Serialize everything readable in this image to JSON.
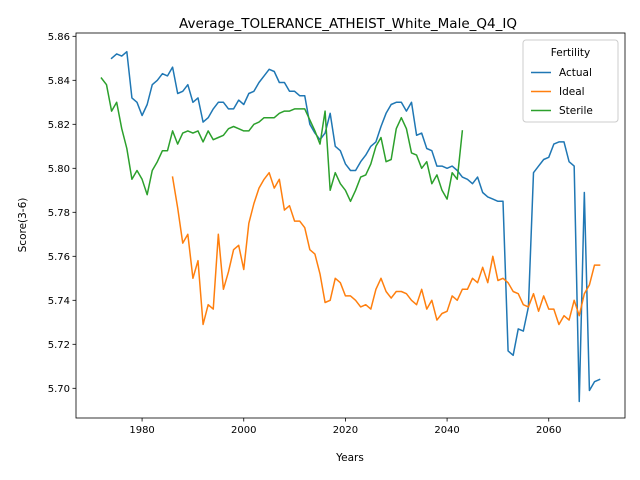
{
  "chart_data": {
    "type": "line",
    "title": "Average_TOLERANCE_ATHEIST_White_Male_Q4_IQ",
    "xlabel": "Years",
    "ylabel": "Score(3-6)",
    "xlim": [
      1967,
      2075
    ],
    "ylim": [
      5.6865,
      5.8615
    ],
    "xticks": [
      1980,
      2000,
      2020,
      2040,
      2060
    ],
    "yticks": [
      5.7,
      5.72,
      5.74,
      5.76,
      5.78,
      5.8,
      5.82,
      5.84,
      5.86
    ],
    "grid": false,
    "legend": {
      "title": "Fertility",
      "placement": "top-right"
    },
    "series": [
      {
        "name": "Actual",
        "color": "#1f77b4",
        "x": [
          1974,
          1975,
          1976,
          1977,
          1978,
          1979,
          1980,
          1981,
          1982,
          1983,
          1984,
          1985,
          1986,
          1987,
          1988,
          1989,
          1990,
          1991,
          1992,
          1993,
          1994,
          1995,
          1996,
          1997,
          1998,
          1999,
          2000,
          2001,
          2002,
          2003,
          2004,
          2005,
          2006,
          2007,
          2008,
          2009,
          2010,
          2011,
          2012,
          2013,
          2014,
          2015,
          2016,
          2017,
          2018,
          2019,
          2020,
          2021,
          2022,
          2023,
          2024,
          2025,
          2026,
          2027,
          2028,
          2029,
          2030,
          2031,
          2032,
          2033,
          2034,
          2035,
          2036,
          2037,
          2038,
          2039,
          2040,
          2041,
          2042,
          2043,
          2044,
          2045,
          2046,
          2047,
          2048,
          2049,
          2050,
          2051,
          2052,
          2053,
          2054,
          2055,
          2056,
          2057,
          2058,
          2059,
          2060,
          2061,
          2062,
          2063,
          2064,
          2065,
          2066,
          2067,
          2068,
          2069,
          2070
        ],
        "values": [
          5.85,
          5.852,
          5.851,
          5.853,
          5.832,
          5.83,
          5.824,
          5.829,
          5.838,
          5.84,
          5.843,
          5.842,
          5.846,
          5.834,
          5.835,
          5.838,
          5.83,
          5.832,
          5.821,
          5.823,
          5.827,
          5.83,
          5.83,
          5.827,
          5.827,
          5.831,
          5.829,
          5.834,
          5.835,
          5.839,
          5.842,
          5.845,
          5.844,
          5.839,
          5.839,
          5.835,
          5.835,
          5.833,
          5.833,
          5.82,
          5.816,
          5.813,
          5.816,
          5.825,
          5.81,
          5.808,
          5.802,
          5.799,
          5.799,
          5.803,
          5.806,
          5.81,
          5.812,
          5.819,
          5.825,
          5.829,
          5.83,
          5.83,
          5.826,
          5.83,
          5.815,
          5.816,
          5.809,
          5.808,
          5.801,
          5.801,
          5.8,
          5.801,
          5.799,
          5.796,
          5.795,
          5.793,
          5.796,
          5.789,
          5.787,
          5.786,
          5.785,
          5.785,
          5.717,
          5.715,
          5.727,
          5.726,
          5.737,
          5.798,
          5.801,
          5.804,
          5.805,
          5.811,
          5.812,
          5.812,
          5.803,
          5.801,
          5.694,
          5.789,
          5.699,
          5.703,
          5.704
        ]
      },
      {
        "name": "Ideal",
        "color": "#ff7f0e",
        "x": [
          1986,
          1987,
          1988,
          1989,
          1990,
          1991,
          1992,
          1993,
          1994,
          1995,
          1996,
          1997,
          1998,
          1999,
          2000,
          2001,
          2002,
          2003,
          2004,
          2005,
          2006,
          2007,
          2008,
          2009,
          2010,
          2011,
          2012,
          2013,
          2014,
          2015,
          2016,
          2017,
          2018,
          2019,
          2020,
          2021,
          2022,
          2023,
          2024,
          2025,
          2026,
          2027,
          2028,
          2029,
          2030,
          2031,
          2032,
          2033,
          2034,
          2035,
          2036,
          2037,
          2038,
          2039,
          2040,
          2041,
          2042,
          2043,
          2044,
          2045,
          2046,
          2047,
          2048,
          2049,
          2050,
          2051,
          2052,
          2053,
          2054,
          2055,
          2056,
          2057,
          2058,
          2059,
          2060,
          2061,
          2062,
          2063,
          2064,
          2065,
          2066,
          2067,
          2068,
          2069,
          2070
        ],
        "values": [
          5.796,
          5.782,
          5.766,
          5.77,
          5.75,
          5.758,
          5.729,
          5.738,
          5.736,
          5.77,
          5.745,
          5.753,
          5.763,
          5.765,
          5.754,
          5.775,
          5.784,
          5.791,
          5.795,
          5.798,
          5.791,
          5.795,
          5.781,
          5.783,
          5.776,
          5.776,
          5.773,
          5.763,
          5.761,
          5.752,
          5.739,
          5.74,
          5.75,
          5.748,
          5.742,
          5.742,
          5.74,
          5.737,
          5.738,
          5.736,
          5.745,
          5.75,
          5.744,
          5.741,
          5.744,
          5.744,
          5.743,
          5.74,
          5.738,
          5.745,
          5.736,
          5.74,
          5.731,
          5.734,
          5.735,
          5.742,
          5.74,
          5.745,
          5.745,
          5.75,
          5.748,
          5.755,
          5.748,
          5.76,
          5.749,
          5.75,
          5.748,
          5.744,
          5.743,
          5.738,
          5.737,
          5.743,
          5.735,
          5.742,
          5.736,
          5.736,
          5.729,
          5.733,
          5.731,
          5.74,
          5.733,
          5.743,
          5.747,
          5.756,
          5.756
        ]
      },
      {
        "name": "Sterile",
        "color": "#2ca02c",
        "x": [
          1972,
          1973,
          1974,
          1975,
          1976,
          1977,
          1978,
          1979,
          1980,
          1981,
          1982,
          1983,
          1984,
          1985,
          1986,
          1987,
          1988,
          1989,
          1990,
          1991,
          1992,
          1993,
          1994,
          1995,
          1996,
          1997,
          1998,
          1999,
          2000,
          2001,
          2002,
          2003,
          2004,
          2005,
          2006,
          2007,
          2008,
          2009,
          2010,
          2011,
          2012,
          2013,
          2014,
          2015,
          2016,
          2017,
          2018,
          2019,
          2020,
          2021,
          2022,
          2023,
          2024,
          2025,
          2026,
          2027,
          2028,
          2029,
          2030,
          2031,
          2032,
          2033,
          2034,
          2035,
          2036,
          2037,
          2038,
          2039,
          2040,
          2041,
          2042,
          2043
        ],
        "values": [
          5.841,
          5.838,
          5.826,
          5.83,
          5.818,
          5.809,
          5.795,
          5.799,
          5.795,
          5.788,
          5.799,
          5.803,
          5.808,
          5.808,
          5.817,
          5.811,
          5.816,
          5.817,
          5.816,
          5.817,
          5.812,
          5.817,
          5.813,
          5.814,
          5.815,
          5.818,
          5.819,
          5.818,
          5.817,
          5.817,
          5.82,
          5.821,
          5.823,
          5.823,
          5.823,
          5.825,
          5.826,
          5.826,
          5.827,
          5.827,
          5.827,
          5.822,
          5.817,
          5.811,
          5.826,
          5.79,
          5.798,
          5.793,
          5.79,
          5.785,
          5.79,
          5.796,
          5.797,
          5.802,
          5.81,
          5.814,
          5.803,
          5.804,
          5.818,
          5.823,
          5.818,
          5.807,
          5.806,
          5.8,
          5.803,
          5.793,
          5.797,
          5.79,
          5.786,
          5.798,
          5.795,
          5.817
        ]
      }
    ]
  }
}
